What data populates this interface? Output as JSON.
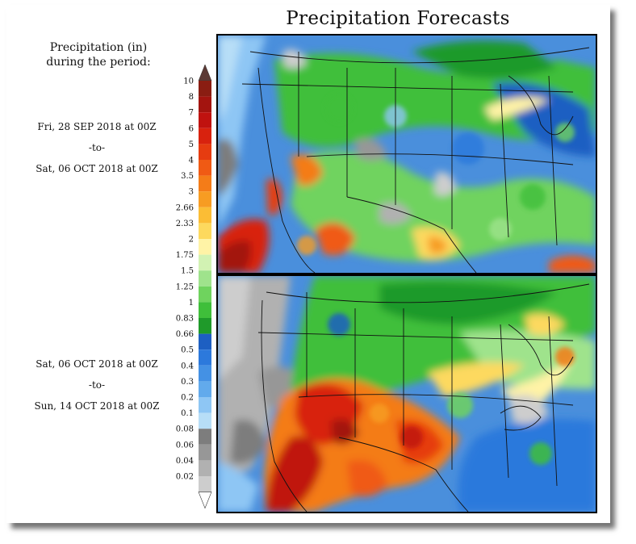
{
  "title": "Precipitation Forecasts",
  "legend": {
    "heading_line1": "Precipitation (in)",
    "heading_line2": "during the period:",
    "levels": [
      "10",
      "8",
      "7",
      "6",
      "5",
      "4",
      "3.5",
      "3",
      "2.66",
      "2.33",
      "2",
      "1.75",
      "1.5",
      "1.25",
      "1",
      "0.83",
      "0.66",
      "0.5",
      "0.4",
      "0.3",
      "0.2",
      "0.1",
      "0.08",
      "0.06",
      "0.04",
      "0.02"
    ],
    "colors": [
      "#8a1d12",
      "#a3140f",
      "#c0120f",
      "#d8220e",
      "#e63c10",
      "#f05a14",
      "#f47c18",
      "#f79c22",
      "#fbbd35",
      "#fdd95e",
      "#fff3a6",
      "#d2f2b3",
      "#9fe38c",
      "#6fd35e",
      "#3fbf3a",
      "#1f9a2a",
      "#1d5fc2",
      "#2c79dc",
      "#4491e4",
      "#62aaec",
      "#8ec6f4",
      "#b7def7",
      "#7d7d7d",
      "#979797",
      "#b1b1b1",
      "#cdcdcd"
    ]
  },
  "periods": [
    {
      "start": "Fri, 28 SEP 2018 at 00Z",
      "sep": "-to-",
      "end": "Sat, 06 OCT 2018 at 00Z"
    },
    {
      "start": "Sat, 06 OCT 2018 at 00Z",
      "sep": "-to-",
      "end": "Sun, 14 OCT 2018 at 00Z"
    }
  ]
}
